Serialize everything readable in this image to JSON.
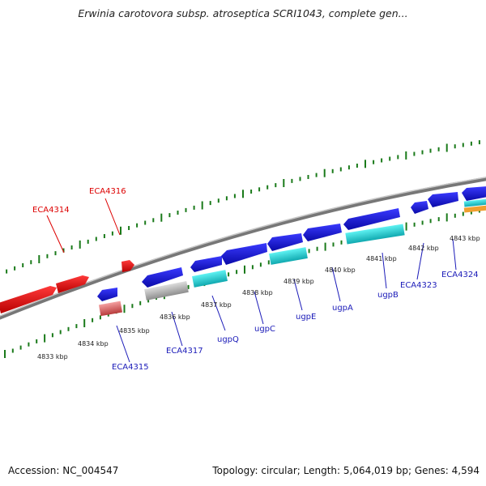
{
  "title": "Erwinia carotovora subsp. atroseptica SCRI1043, complete gen...",
  "footer": {
    "accession": "Accession: NC_004547",
    "stats": "Topology: circular; Length: 5,064,019 bp; Genes: 4,594"
  },
  "colors": {
    "axis": "#8a8a8a",
    "tick": "#1a7a1a",
    "red_label": "#dd0000",
    "blue_label": "#1a1ab8",
    "forward_gene": "#e01010",
    "reverse_gene": "#1a1aee",
    "rna_cyan": "#19d6dc",
    "pseudo_pink": "#e87a7a",
    "grey_feature": "#c0c0c0",
    "orange_feature": "#f0a030"
  },
  "scale_labels": [
    "4833 kbp",
    "4834 kbp",
    "4835 kbp",
    "4836 kbp",
    "4837 kbp",
    "4838 kbp",
    "4839 kbp",
    "4840 kbp",
    "4841 kbp",
    "4842 kbp",
    "4843 kbp"
  ],
  "gene_labels": [
    {
      "text": "ECA4314",
      "strand": "forward"
    },
    {
      "text": "ECA4316",
      "strand": "forward"
    },
    {
      "text": "ECA4315",
      "strand": "reverse"
    },
    {
      "text": "ECA4317",
      "strand": "reverse"
    },
    {
      "text": "ugpQ",
      "strand": "reverse"
    },
    {
      "text": "ugpC",
      "strand": "reverse"
    },
    {
      "text": "ugpE",
      "strand": "reverse"
    },
    {
      "text": "ugpA",
      "strand": "reverse"
    },
    {
      "text": "ugpB",
      "strand": "reverse"
    },
    {
      "text": "ECA4323",
      "strand": "reverse"
    },
    {
      "text": "ECA4324",
      "strand": "reverse"
    }
  ]
}
